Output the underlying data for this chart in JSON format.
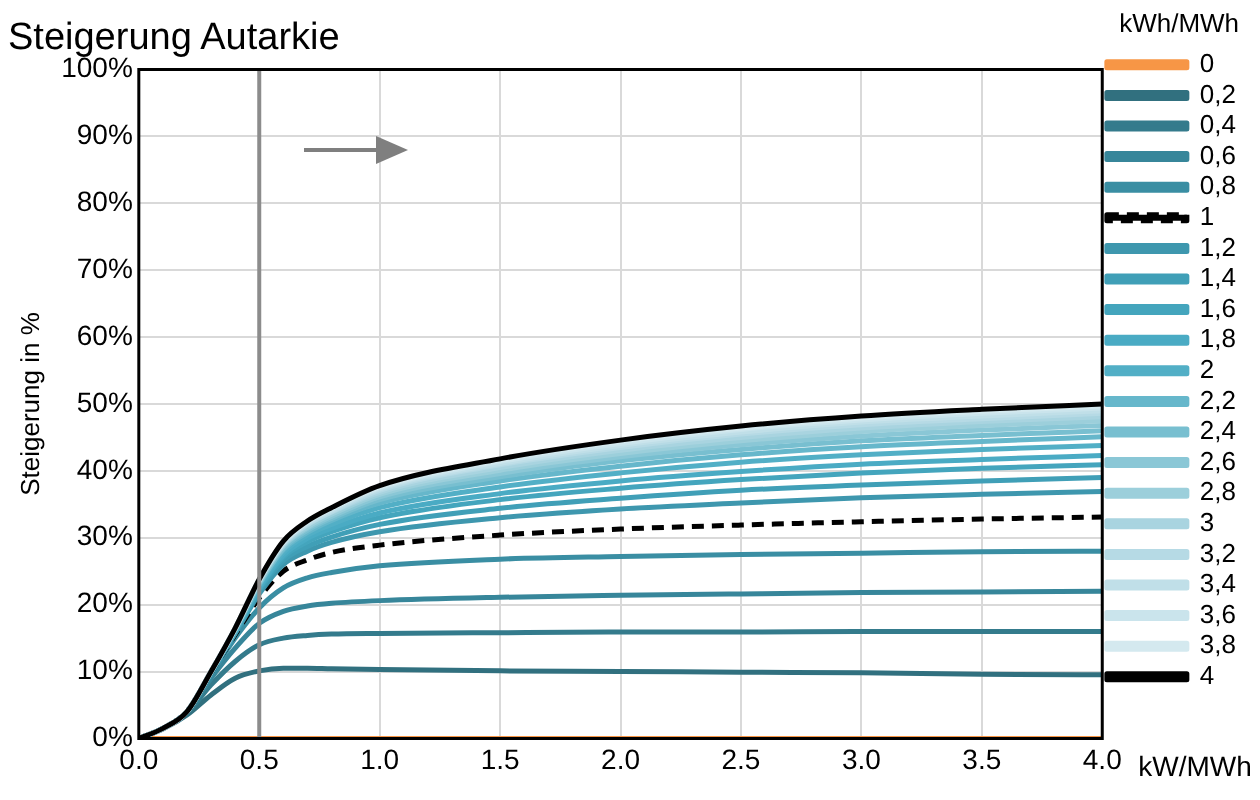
{
  "chart_data": {
    "type": "line",
    "title": "Steigerung Autarkie",
    "ylabel": "Steigerung in %",
    "xlabel": "kW/MWh",
    "legend_title": "kWh/MWh",
    "legend": "right",
    "grid": true,
    "marker": "none",
    "x": [
      0,
      0.1,
      0.2,
      0.3,
      0.4,
      0.5,
      0.6,
      0.7,
      0.8,
      1.0,
      1.5,
      2.0,
      2.5,
      3.0,
      3.5,
      4.0
    ],
    "xlim": [
      0,
      4
    ],
    "xticks": [
      {
        "value": 0,
        "label": "0.0"
      },
      {
        "value": 0.5,
        "label": "0.5"
      },
      {
        "value": 1,
        "label": "1.0"
      },
      {
        "value": 1.5,
        "label": "1.5"
      },
      {
        "value": 2,
        "label": "2.0"
      },
      {
        "value": 2.5,
        "label": "2.5"
      },
      {
        "value": 3,
        "label": "3.0"
      },
      {
        "value": 3.5,
        "label": "3.5"
      },
      {
        "value": 4,
        "label": "4.0"
      }
    ],
    "ylim": [
      0,
      100
    ],
    "yticks": [
      {
        "value": 0,
        "label": "0%"
      },
      {
        "value": 10,
        "label": "10%"
      },
      {
        "value": 20,
        "label": "20%"
      },
      {
        "value": 30,
        "label": "30%"
      },
      {
        "value": 40,
        "label": "40%"
      },
      {
        "value": 50,
        "label": "50%"
      },
      {
        "value": 60,
        "label": "60%"
      },
      {
        "value": 70,
        "label": "70%"
      },
      {
        "value": 80,
        "label": "80%"
      },
      {
        "value": 90,
        "label": "90%"
      },
      {
        "value": 100,
        "label": "100%"
      }
    ],
    "ref_lines": [
      {
        "axis": "x",
        "value": 0.5,
        "color": "#8c8c8c"
      }
    ],
    "series": [
      {
        "name": "0",
        "color": "#f79646",
        "values": [
          0,
          0,
          0,
          0,
          0,
          0,
          0,
          0,
          0,
          0,
          0,
          0,
          0,
          0,
          0,
          0
        ]
      },
      {
        "name": "0,2",
        "color": "#31707f",
        "values": [
          0,
          1.4,
          3.5,
          6.5,
          9,
          10.1,
          10.5,
          10.5,
          10.4,
          10.3,
          10.1,
          10,
          9.9,
          9.8,
          9.6,
          9.5
        ]
      },
      {
        "name": "0,4",
        "color": "#347b8c",
        "values": [
          0,
          1.5,
          3.8,
          8,
          11.5,
          14,
          15,
          15.4,
          15.6,
          15.7,
          15.8,
          15.9,
          15.9,
          16,
          16,
          16
        ]
      },
      {
        "name": "0,6",
        "color": "#37869a",
        "values": [
          0,
          1.5,
          3.9,
          9,
          13.5,
          17.2,
          19,
          19.8,
          20.2,
          20.6,
          21.1,
          21.4,
          21.6,
          21.8,
          21.9,
          22
        ]
      },
      {
        "name": "0,8",
        "color": "#3a8ea3",
        "values": [
          0,
          1.5,
          4,
          9.5,
          15,
          19.5,
          22.5,
          24,
          24.8,
          25.8,
          26.8,
          27.2,
          27.5,
          27.7,
          27.9,
          28
        ]
      },
      {
        "name": "1",
        "color": "#000000",
        "line_style": "dashed",
        "values": [
          0,
          1.5,
          4,
          9.8,
          15.5,
          21,
          25,
          26.7,
          27.8,
          28.9,
          30.4,
          31.3,
          31.9,
          32.4,
          32.8,
          33.1
        ]
      },
      {
        "name": "1,2",
        "color": "#3e97ae",
        "values": [
          0,
          1.5,
          4,
          9.8,
          15.7,
          21.6,
          26.0,
          28.0,
          29.3,
          30.9,
          33.0,
          34.3,
          35.2,
          36.0,
          36.5,
          36.9
        ]
      },
      {
        "name": "1,4",
        "color": "#409fb7",
        "values": [
          0,
          1.5,
          4,
          9.9,
          15.8,
          22.0,
          26.6,
          28.7,
          30.1,
          32.0,
          34.4,
          35.9,
          37.1,
          37.9,
          38.5,
          39.0
        ]
      },
      {
        "name": "1,6",
        "color": "#44a5bd",
        "values": [
          0,
          1.5,
          4,
          9.9,
          16.0,
          22.3,
          27.1,
          29.4,
          30.9,
          33.0,
          35.7,
          37.4,
          38.7,
          39.7,
          40.4,
          40.9
        ]
      },
      {
        "name": "1,8",
        "color": "#4aabc4",
        "values": [
          0,
          1.5,
          4,
          9.9,
          16.0,
          22.5,
          27.4,
          29.9,
          31.4,
          33.7,
          36.6,
          38.5,
          39.9,
          41.0,
          41.7,
          42.3
        ]
      },
      {
        "name": "2",
        "color": "#52afc6",
        "values": [
          0,
          1.5,
          4,
          9.9,
          16.1,
          22.8,
          27.8,
          30.4,
          32.0,
          34.5,
          37.6,
          39.7,
          41.3,
          42.4,
          43.2,
          43.8
        ]
      },
      {
        "name": "2,2",
        "color": "#66b7cb",
        "values": [
          0,
          1.5,
          4,
          9.9,
          16.2,
          23.0,
          28.2,
          30.8,
          32.6,
          35.2,
          38.5,
          40.7,
          42.4,
          43.6,
          44.4,
          45.1
        ]
      },
      {
        "name": "2,4",
        "color": "#78bfd0",
        "values": [
          0,
          1.5,
          4,
          10.0,
          16.3,
          23.1,
          28.4,
          31.1,
          32.9,
          35.7,
          39.1,
          41.5,
          43.2,
          44.5,
          45.3,
          46.0
        ]
      },
      {
        "name": "2,6",
        "color": "#8ac7d6",
        "values": [
          0,
          1.5,
          4,
          10.0,
          16.3,
          23.3,
          28.7,
          31.4,
          33.2,
          36.1,
          39.6,
          42.1,
          43.9,
          45.2,
          46.1,
          46.8
        ]
      },
      {
        "name": "2,8",
        "color": "#9ccfdb",
        "values": [
          0,
          1.5,
          4,
          10.0,
          16.4,
          23.4,
          28.8,
          31.6,
          33.5,
          36.5,
          40.1,
          42.6,
          44.5,
          45.9,
          46.8,
          47.5
        ]
      },
      {
        "name": "3",
        "color": "#a9d4e0",
        "values": [
          0,
          1.5,
          4,
          10.0,
          16.4,
          23.5,
          29.0,
          31.9,
          33.8,
          36.8,
          40.5,
          43.1,
          45.0,
          46.4,
          47.4,
          48.1
        ]
      },
      {
        "name": "3,2",
        "color": "#b6dae5",
        "values": [
          0,
          1.5,
          4,
          10.0,
          16.4,
          23.6,
          29.1,
          32.0,
          33.9,
          37.1,
          40.9,
          43.5,
          45.5,
          46.9,
          47.8,
          48.6
        ]
      },
      {
        "name": "3,4",
        "color": "#c0dfe8",
        "values": [
          0,
          1.5,
          4,
          10.0,
          16.4,
          23.6,
          29.2,
          32.2,
          34.1,
          37.3,
          41.1,
          43.8,
          45.8,
          47.3,
          48.2,
          49.0
        ]
      },
      {
        "name": "3,6",
        "color": "#cae4ec",
        "values": [
          0,
          1.5,
          4,
          10.0,
          16.5,
          23.7,
          29.3,
          32.3,
          34.3,
          37.5,
          41.4,
          44.1,
          46.2,
          47.6,
          48.6,
          49.4
        ]
      },
      {
        "name": "3,8",
        "color": "#d4e9ef",
        "values": [
          0,
          1.5,
          4,
          10.0,
          16.5,
          23.8,
          29.4,
          32.4,
          34.4,
          37.6,
          41.6,
          44.4,
          46.4,
          47.9,
          48.9,
          49.7
        ]
      },
      {
        "name": "4",
        "color": "#000000",
        "values": [
          0,
          1.5,
          4,
          10,
          16.5,
          23.8,
          29.5,
          32.5,
          34.5,
          37.8,
          41.8,
          44.6,
          46.7,
          48.2,
          49.2,
          50
        ]
      }
    ]
  }
}
